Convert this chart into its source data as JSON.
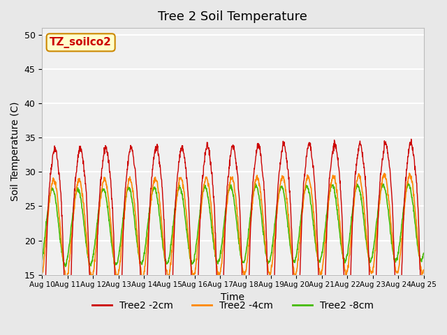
{
  "title": "Tree 2 Soil Temperature",
  "xlabel": "Time",
  "ylabel": "Soil Temperature (C)",
  "ylim": [
    15,
    51
  ],
  "yticks": [
    15,
    20,
    25,
    30,
    35,
    40,
    45,
    50
  ],
  "xlim_days": [
    0,
    15
  ],
  "x_tick_labels": [
    "Aug 10",
    "Aug 11",
    "Aug 12",
    "Aug 13",
    "Aug 14",
    "Aug 15",
    "Aug 16",
    "Aug 17",
    "Aug 18",
    "Aug 19",
    "Aug 20",
    "Aug 21",
    "Aug 22",
    "Aug 23",
    "Aug 24",
    "Aug 25"
  ],
  "annotation_text": "TZ_soilco2",
  "annotation_color": "#cc0000",
  "annotation_bg": "#ffffcc",
  "annotation_border": "#cc8800",
  "legend_labels": [
    "Tree2 -2cm",
    "Tree2 -4cm",
    "Tree2 -8cm"
  ],
  "colors": [
    "#cc0000",
    "#ff8800",
    "#44bb00"
  ],
  "bg_color": "#e8e8e8",
  "plot_bg": "#f0f0f0",
  "grid_color": "#ffffff",
  "n_points": 1440,
  "days": 15,
  "base_temp": 22,
  "amp_2cm": 14,
  "amp_4cm": 7,
  "amp_8cm": 5.5,
  "phase_shift_4cm": 0.3,
  "phase_shift_8cm": 0.6,
  "spike_factor_2cm": 1.8,
  "trend_slope": 0.05
}
